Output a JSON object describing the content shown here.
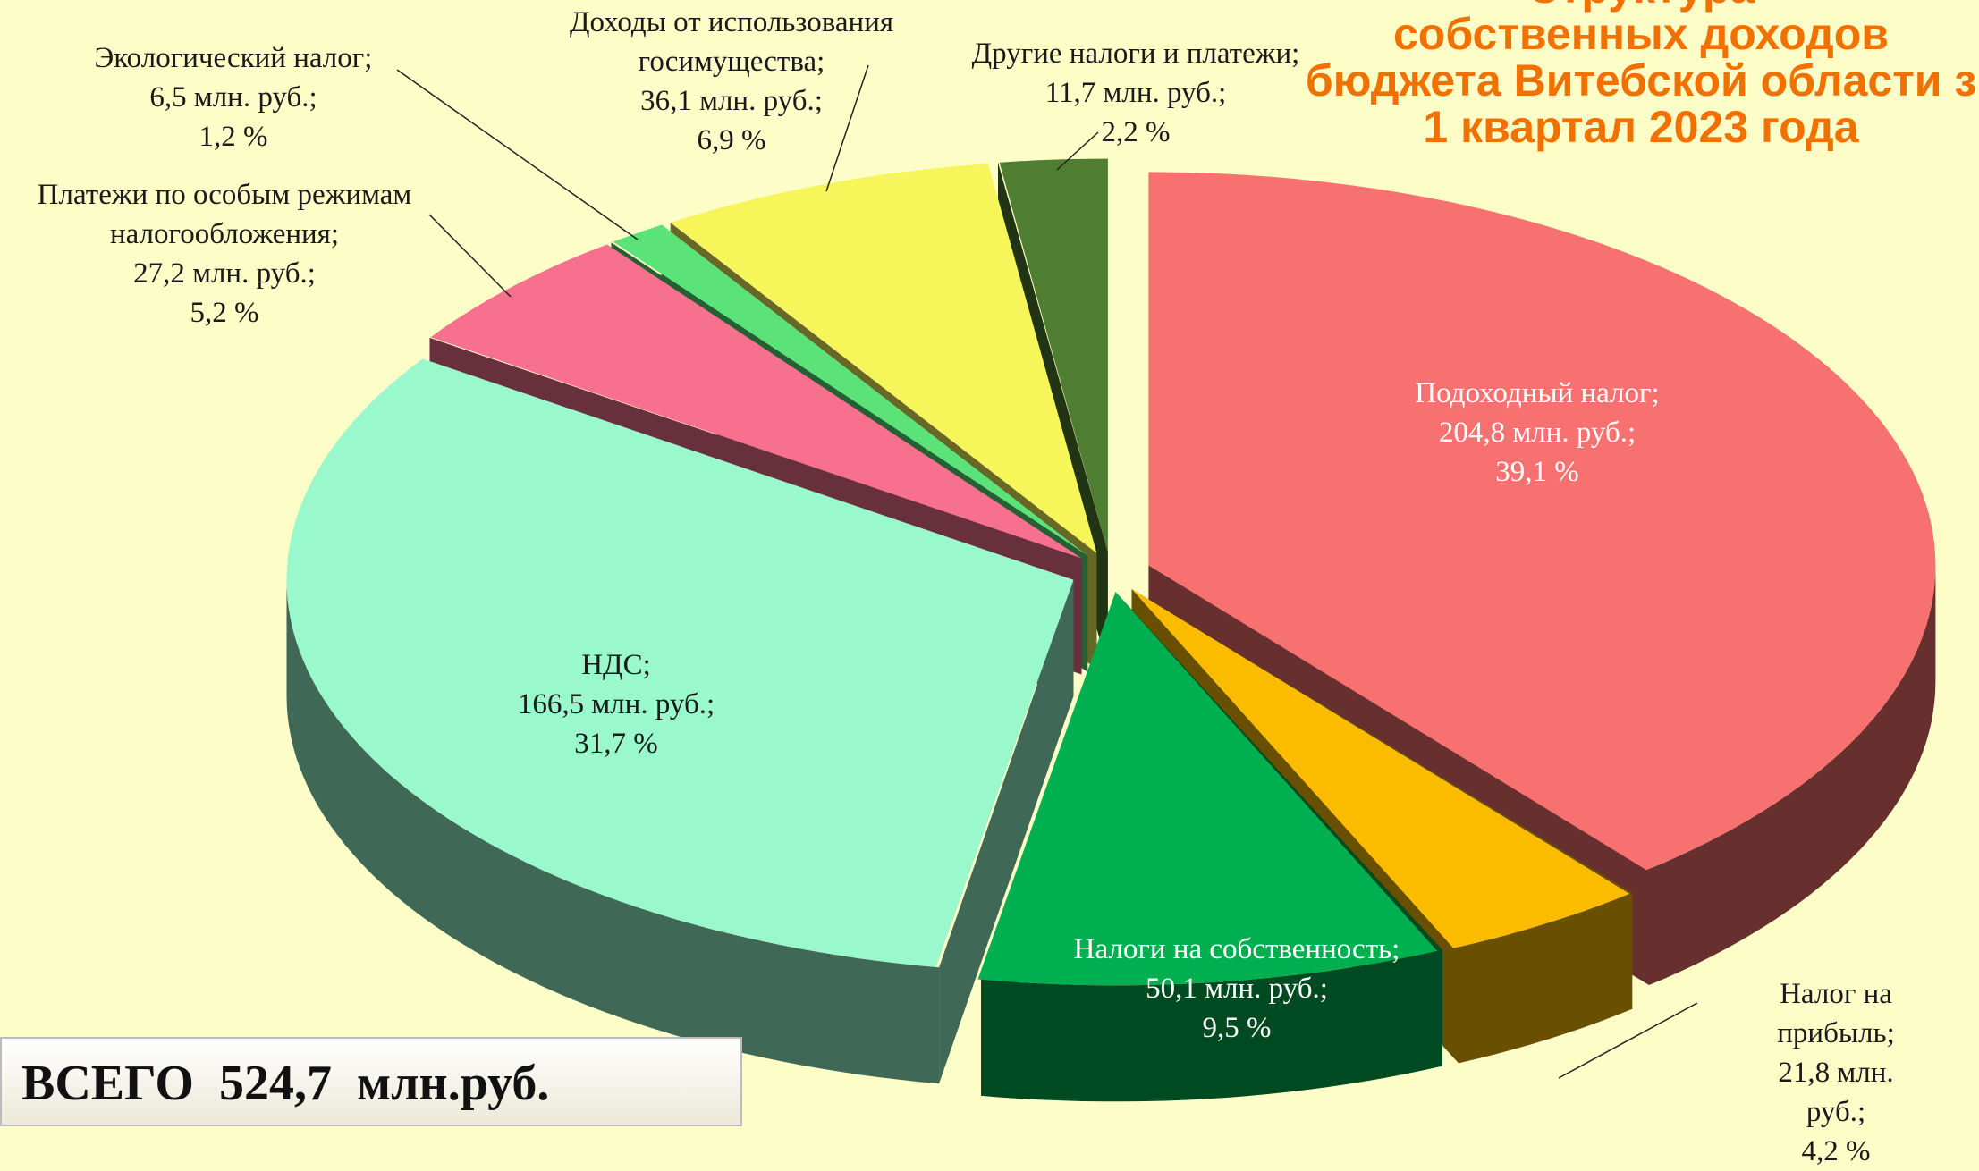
{
  "chart_data": {
    "type": "pie3d",
    "title": [
      "Структура",
      "собственных доходов",
      "бюджета Витебской области з",
      "1 квартал 2023 года"
    ],
    "categories": [
      "Подоходный налог;",
      "Налог на прибыль;",
      "Налоги на собственность;",
      "НДС;",
      "Платежи по особым режимам\nналогообложения;",
      "Экологический налог;",
      "Доходы от использования\nгосимущества;",
      "Другие налоги и платежи;"
    ],
    "amounts": [
      204.8,
      21.8,
      50.1,
      166.5,
      27.2,
      6.5,
      36.1,
      11.7
    ],
    "amount_labels": [
      "204,8 млн. руб.;",
      "21,8 млн. руб.;",
      "50,1 млн. руб.;",
      "166,5 млн. руб.;",
      "27,2 млн. руб.;",
      "6,5 млн. руб.;",
      "36,1 млн. руб.;",
      "11,7 млн. руб.;"
    ],
    "values": [
      39.1,
      4.2,
      9.5,
      31.7,
      5.2,
      1.2,
      6.9,
      2.2
    ],
    "value_labels": [
      "39,1 %",
      "4,2 %",
      "9,5 %",
      "31,7 %",
      "5,2 %",
      "1,2 %",
      "6,9 %",
      "2,2 %"
    ],
    "colors": [
      "#f87171",
      "#fbbc00",
      "#00b050",
      "#99f8cc",
      "#f7718f",
      "#5be37a",
      "#f6f65a",
      "#4f7d31"
    ],
    "total": {
      "label": "ВСЕГО",
      "value": 524.7,
      "value_label": "524,7  млн.руб."
    }
  }
}
